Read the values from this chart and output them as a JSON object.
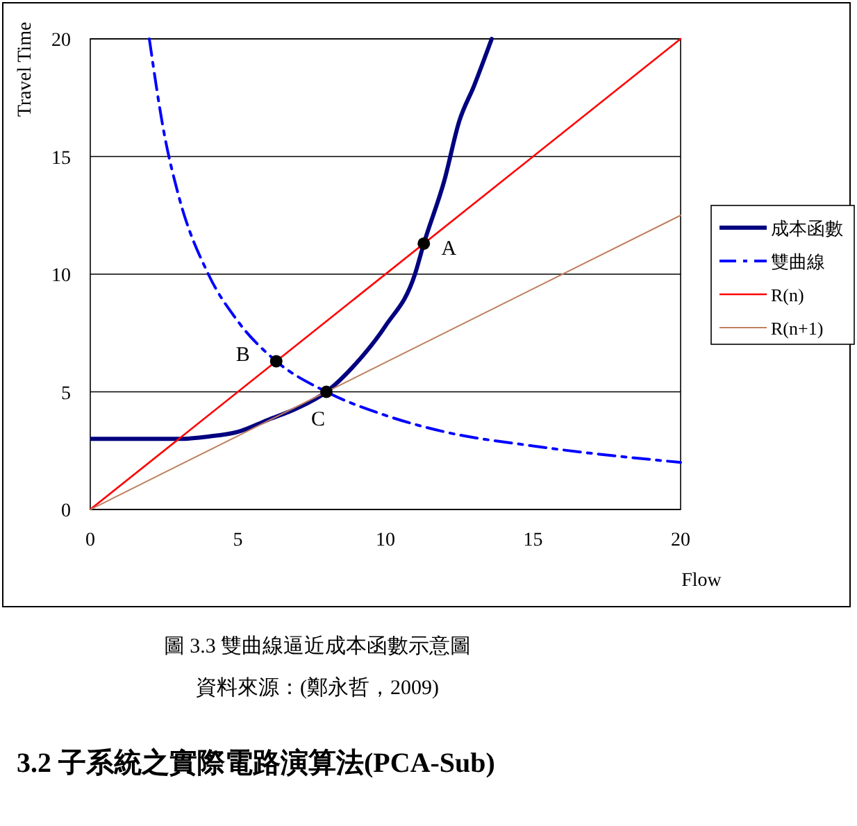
{
  "chart_data": {
    "type": "line",
    "xlabel": "Flow",
    "ylabel": "Travel Time",
    "xlim": [
      0,
      20
    ],
    "xticks": [
      0,
      5,
      10,
      15,
      20
    ],
    "ylim": [
      0,
      20
    ],
    "yticks": [
      0,
      5,
      10,
      15,
      20
    ],
    "grid": "y",
    "legend": "right",
    "series": [
      {
        "name": "成本函數",
        "color": "#000080",
        "line_style": "solid",
        "x": [
          0,
          3,
          4,
          5,
          6,
          7,
          8,
          9,
          10,
          11,
          11.3,
          12,
          12.5,
          13,
          13.6
        ],
        "values": [
          3,
          3,
          3.1,
          3.3,
          3.8,
          4.3,
          5,
          6.2,
          7.8,
          10,
          11.3,
          14,
          16.5,
          18,
          20
        ]
      },
      {
        "name": "雙曲線",
        "color": "#0000ff",
        "line_style": "dashed",
        "x": [
          2,
          2.5,
          3,
          4,
          5,
          6.3,
          8,
          10,
          12,
          15,
          20
        ],
        "values": [
          20,
          16,
          13.3,
          10,
          8,
          6.3,
          5,
          4,
          3.3,
          2.7,
          2
        ]
      },
      {
        "name": "R(n)",
        "color": "#ff0000",
        "line_style": "solid",
        "x": [
          0,
          20
        ],
        "values": [
          0,
          20
        ]
      },
      {
        "name": "R(n+1)",
        "color": "#c08060",
        "line_style": "solid",
        "x": [
          0,
          20
        ],
        "values": [
          0,
          12.5
        ]
      },
      {
        "type": "scatter",
        "color": "#000000",
        "marker": "circle",
        "x": [
          11.3,
          6.3,
          8
        ],
        "values": [
          11.3,
          6.3,
          5
        ]
      }
    ],
    "annotations": [
      {
        "text": "A",
        "x": 11.3,
        "y": 11.3
      },
      {
        "text": "B",
        "x": 6.3,
        "y": 6.3
      },
      {
        "text": "C",
        "x": 8,
        "y": 5
      },
      "圖 3.3  雙曲線逼近成本函數示意圖",
      "資料來源：(鄭永哲，2009)",
      "3.2  子系統之實際電路演算法(PCA-Sub)"
    ]
  }
}
